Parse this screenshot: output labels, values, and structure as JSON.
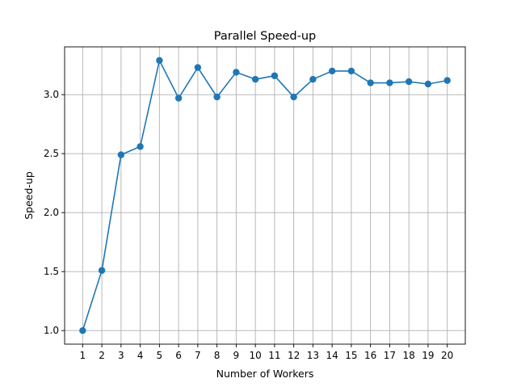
{
  "chart_data": {
    "type": "line",
    "title": "Parallel Speed-up",
    "xlabel": "Number of Workers",
    "ylabel": "Speed-up",
    "x": [
      1,
      2,
      3,
      4,
      5,
      6,
      7,
      8,
      9,
      10,
      11,
      12,
      13,
      14,
      15,
      16,
      17,
      18,
      19,
      20
    ],
    "series": [
      {
        "values": [
          1.0,
          1.51,
          2.49,
          2.56,
          3.29,
          2.97,
          3.23,
          2.98,
          3.19,
          3.13,
          3.16,
          2.98,
          3.13,
          3.2,
          3.2,
          3.1,
          3.1,
          3.11,
          3.09,
          3.12
        ],
        "color": "#1f77b4",
        "marker": "circle"
      }
    ],
    "xticks": [
      "1",
      "2",
      "3",
      "4",
      "5",
      "6",
      "7",
      "8",
      "9",
      "10",
      "11",
      "12",
      "13",
      "14",
      "15",
      "16",
      "17",
      "18",
      "19",
      "20"
    ],
    "yticks": [
      "1.0",
      "1.5",
      "2.0",
      "2.5",
      "3.0"
    ],
    "xlim": [
      0.06,
      20.94
    ],
    "ylim": [
      0.885,
      3.405
    ],
    "grid": true
  }
}
